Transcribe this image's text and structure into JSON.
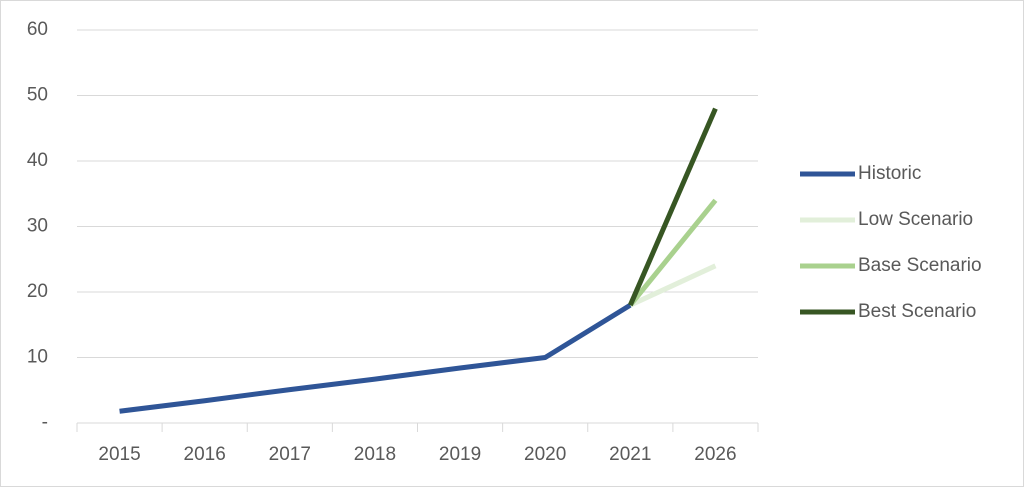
{
  "chart_data": {
    "type": "line",
    "categories": [
      "2015",
      "2016",
      "2017",
      "2018",
      "2019",
      "2020",
      "2021",
      "2026"
    ],
    "series": [
      {
        "name": "Historic",
        "color": "#2f5597",
        "values": [
          1.8,
          3.4,
          5.1,
          6.7,
          8.4,
          10,
          18,
          null
        ]
      },
      {
        "name": "Low Scenario",
        "color": "#e2efda",
        "values": [
          null,
          null,
          null,
          null,
          null,
          null,
          18,
          24
        ]
      },
      {
        "name": "Base Scenario",
        "color": "#a9d18e",
        "values": [
          null,
          null,
          null,
          null,
          null,
          null,
          18,
          34
        ]
      },
      {
        "name": "Best Scenario",
        "color": "#375623",
        "values": [
          null,
          null,
          null,
          null,
          null,
          null,
          18,
          48
        ]
      }
    ],
    "ylim": [
      0,
      60
    ],
    "yticks": [
      {
        "value": 0,
        "label": "-"
      },
      10,
      20,
      30,
      40,
      50,
      60
    ],
    "grid": true,
    "legend": "right"
  }
}
